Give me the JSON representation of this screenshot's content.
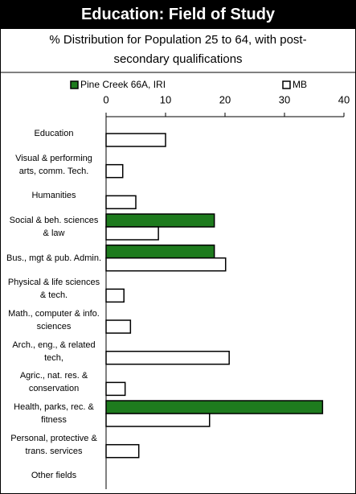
{
  "chart_data": {
    "type": "bar",
    "orientation": "horizontal",
    "title": "Education: Field of Study",
    "subtitle": "% Distribution for Population 25 to 64, with post-secondary qualifications",
    "categories": [
      "Education",
      "Visual & performing arts, comm. Tech.",
      "Humanities",
      "Social & beh. sciences & law",
      "Bus., mgt & pub. Admin.",
      "Physical & life sciences & tech.",
      "Math., computer & info. sciences",
      "Arch., eng., & related tech,",
      "Agric., nat. res. & conservation",
      "Health, parks, rec. & fitness",
      "Personal, protective & trans. services",
      "Other fields"
    ],
    "series": [
      {
        "name": "Pine Creek 66A, IRI",
        "color": "#1e7b1e",
        "values": [
          0,
          0,
          0,
          18.2,
          18.2,
          0,
          0,
          0,
          0,
          36.4,
          0,
          0
        ]
      },
      {
        "name": "MB",
        "color": "#ffffff",
        "values": [
          10.0,
          2.8,
          5.0,
          8.8,
          20.1,
          3.0,
          4.1,
          20.7,
          3.2,
          17.4,
          5.5,
          0
        ]
      }
    ],
    "xlim": [
      0,
      40
    ],
    "xticks": [
      0,
      10,
      20,
      30,
      40
    ],
    "legend": "top"
  }
}
